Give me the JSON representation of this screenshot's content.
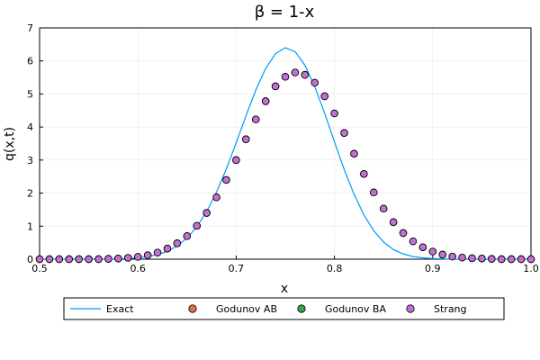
{
  "chart_data": {
    "type": "scatter",
    "title": "β = 1-x",
    "xlabel": "x",
    "ylabel": "q(x,t)",
    "xlim": [
      0.5,
      1.0
    ],
    "ylim": [
      0,
      7
    ],
    "xticks": [
      "0.5",
      "0.6",
      "0.7",
      "0.8",
      "0.9",
      "1.0"
    ],
    "yticks": [
      "0",
      "1",
      "2",
      "3",
      "4",
      "5",
      "6",
      "7"
    ],
    "grid": true,
    "legend_position": "bottom",
    "colors": {
      "exact": "#009AFA",
      "godunov_ab": "#E26F46",
      "godunov_ba": "#3DA44D",
      "strang": "#C271D2"
    },
    "exact": {
      "name": "Exact",
      "x": [
        0.5,
        0.51,
        0.52,
        0.53,
        0.54,
        0.55,
        0.56,
        0.57,
        0.58,
        0.59,
        0.6,
        0.61,
        0.62,
        0.63,
        0.64,
        0.65,
        0.66,
        0.67,
        0.68,
        0.69,
        0.7,
        0.71,
        0.72,
        0.73,
        0.74,
        0.75,
        0.76,
        0.77,
        0.78,
        0.79,
        0.8,
        0.81,
        0.82,
        0.83,
        0.84,
        0.85,
        0.86,
        0.87,
        0.88,
        0.89,
        0.9,
        0.91,
        0.92,
        0.93,
        0.94,
        0.95,
        0.96,
        0.97,
        0.98,
        0.99,
        1.0
      ],
      "y": [
        0.0,
        0.0,
        0.0,
        0.0,
        0.0,
        0.0,
        0.0,
        0.0,
        0.01,
        0.02,
        0.04,
        0.08,
        0.14,
        0.24,
        0.4,
        0.64,
        0.98,
        1.44,
        2.03,
        2.73,
        3.52,
        4.34,
        5.12,
        5.77,
        6.22,
        6.4,
        6.28,
        5.87,
        5.22,
        4.42,
        3.55,
        2.71,
        1.96,
        1.34,
        0.86,
        0.52,
        0.29,
        0.16,
        0.08,
        0.04,
        0.02,
        0.01,
        0.0,
        0.0,
        0.0,
        0.0,
        0.0,
        0.0,
        0.0,
        0.0,
        0.0
      ]
    },
    "series": [
      {
        "name": "Godunov AB",
        "x": [
          0.5,
          0.51,
          0.52,
          0.53,
          0.54,
          0.55,
          0.56,
          0.57,
          0.58,
          0.59,
          0.6,
          0.61,
          0.62,
          0.63,
          0.64,
          0.65,
          0.66,
          0.67,
          0.68,
          0.69,
          0.7,
          0.71,
          0.72,
          0.73,
          0.74,
          0.75,
          0.76,
          0.77,
          0.78,
          0.79,
          0.8,
          0.81,
          0.82,
          0.83,
          0.84,
          0.85,
          0.86,
          0.87,
          0.88,
          0.89,
          0.9,
          0.91,
          0.92,
          0.93,
          0.94,
          0.95,
          0.96,
          0.97,
          0.98,
          0.99,
          1.0
        ],
        "y": [
          0.0,
          0.0,
          0.0,
          0.0,
          0.0,
          0.0,
          0.0,
          0.01,
          0.02,
          0.04,
          0.07,
          0.12,
          0.2,
          0.32,
          0.48,
          0.7,
          1.01,
          1.4,
          1.87,
          2.4,
          3.0,
          3.63,
          4.23,
          4.78,
          5.23,
          5.52,
          5.65,
          5.58,
          5.34,
          4.93,
          4.41,
          3.82,
          3.19,
          2.58,
          2.02,
          1.53,
          1.12,
          0.79,
          0.54,
          0.36,
          0.23,
          0.14,
          0.08,
          0.05,
          0.03,
          0.02,
          0.01,
          0.0,
          0.0,
          0.0,
          0.0
        ]
      },
      {
        "name": "Godunov BA",
        "x": [
          0.5,
          0.51,
          0.52,
          0.53,
          0.54,
          0.55,
          0.56,
          0.57,
          0.58,
          0.59,
          0.6,
          0.61,
          0.62,
          0.63,
          0.64,
          0.65,
          0.66,
          0.67,
          0.68,
          0.69,
          0.7,
          0.71,
          0.72,
          0.73,
          0.74,
          0.75,
          0.76,
          0.77,
          0.78,
          0.79,
          0.8,
          0.81,
          0.82,
          0.83,
          0.84,
          0.85,
          0.86,
          0.87,
          0.88,
          0.89,
          0.9,
          0.91,
          0.92,
          0.93,
          0.94,
          0.95,
          0.96,
          0.97,
          0.98,
          0.99,
          1.0
        ],
        "y": [
          0.0,
          0.0,
          0.0,
          0.0,
          0.0,
          0.0,
          0.0,
          0.01,
          0.02,
          0.04,
          0.07,
          0.12,
          0.2,
          0.32,
          0.48,
          0.7,
          1.01,
          1.4,
          1.87,
          2.4,
          3.0,
          3.63,
          4.23,
          4.78,
          5.23,
          5.52,
          5.65,
          5.58,
          5.34,
          4.93,
          4.41,
          3.82,
          3.19,
          2.58,
          2.02,
          1.53,
          1.12,
          0.79,
          0.54,
          0.36,
          0.23,
          0.14,
          0.08,
          0.05,
          0.03,
          0.02,
          0.01,
          0.0,
          0.0,
          0.0,
          0.0
        ]
      },
      {
        "name": "Strang",
        "x": [
          0.5,
          0.51,
          0.52,
          0.53,
          0.54,
          0.55,
          0.56,
          0.57,
          0.58,
          0.59,
          0.6,
          0.61,
          0.62,
          0.63,
          0.64,
          0.65,
          0.66,
          0.67,
          0.68,
          0.69,
          0.7,
          0.71,
          0.72,
          0.73,
          0.74,
          0.75,
          0.76,
          0.77,
          0.78,
          0.79,
          0.8,
          0.81,
          0.82,
          0.83,
          0.84,
          0.85,
          0.86,
          0.87,
          0.88,
          0.89,
          0.9,
          0.91,
          0.92,
          0.93,
          0.94,
          0.95,
          0.96,
          0.97,
          0.98,
          0.99,
          1.0
        ],
        "y": [
          0.0,
          0.0,
          0.0,
          0.0,
          0.0,
          0.0,
          0.0,
          0.01,
          0.02,
          0.04,
          0.07,
          0.12,
          0.2,
          0.32,
          0.48,
          0.7,
          1.01,
          1.4,
          1.87,
          2.4,
          3.0,
          3.63,
          4.23,
          4.78,
          5.23,
          5.52,
          5.65,
          5.58,
          5.34,
          4.93,
          4.41,
          3.82,
          3.19,
          2.58,
          2.02,
          1.53,
          1.12,
          0.79,
          0.54,
          0.36,
          0.23,
          0.14,
          0.08,
          0.05,
          0.03,
          0.02,
          0.01,
          0.0,
          0.0,
          0.0,
          0.0
        ]
      }
    ]
  }
}
